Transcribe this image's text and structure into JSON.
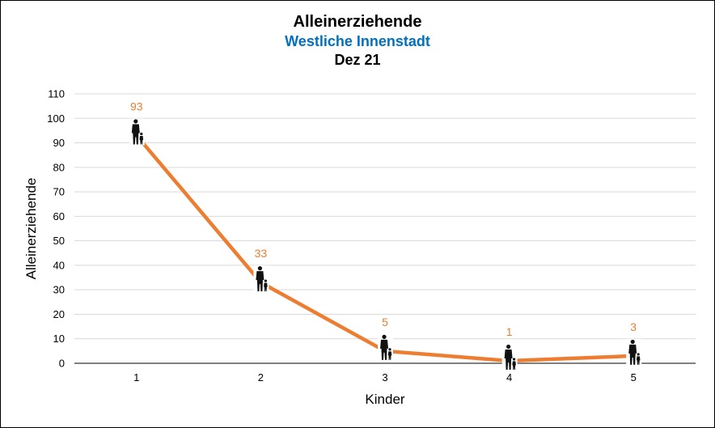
{
  "chart_data": {
    "type": "line",
    "title": "Alleinerziehende",
    "subtitle": "Westliche Innenstadt",
    "subtitle2": "Dez 21",
    "xlabel": "Kinder",
    "ylabel": "Alleinerziehende",
    "categories": [
      "1",
      "2",
      "3",
      "4",
      "5"
    ],
    "series": [
      {
        "values": [
          93,
          33,
          5,
          1,
          3
        ],
        "labels": [
          "93",
          "33",
          "5",
          "1",
          "3"
        ],
        "color": "#ED7D31"
      }
    ],
    "ylim": [
      0,
      110
    ],
    "yticks": [
      0,
      10,
      20,
      30,
      40,
      50,
      60,
      70,
      80,
      90,
      100,
      110
    ],
    "yticklabels": [
      "0",
      "10",
      "20",
      "30",
      "40",
      "50",
      "60",
      "70",
      "80",
      "90",
      "100",
      "110"
    ],
    "grid": true,
    "marker_icon": "parent-with-child-icon"
  }
}
